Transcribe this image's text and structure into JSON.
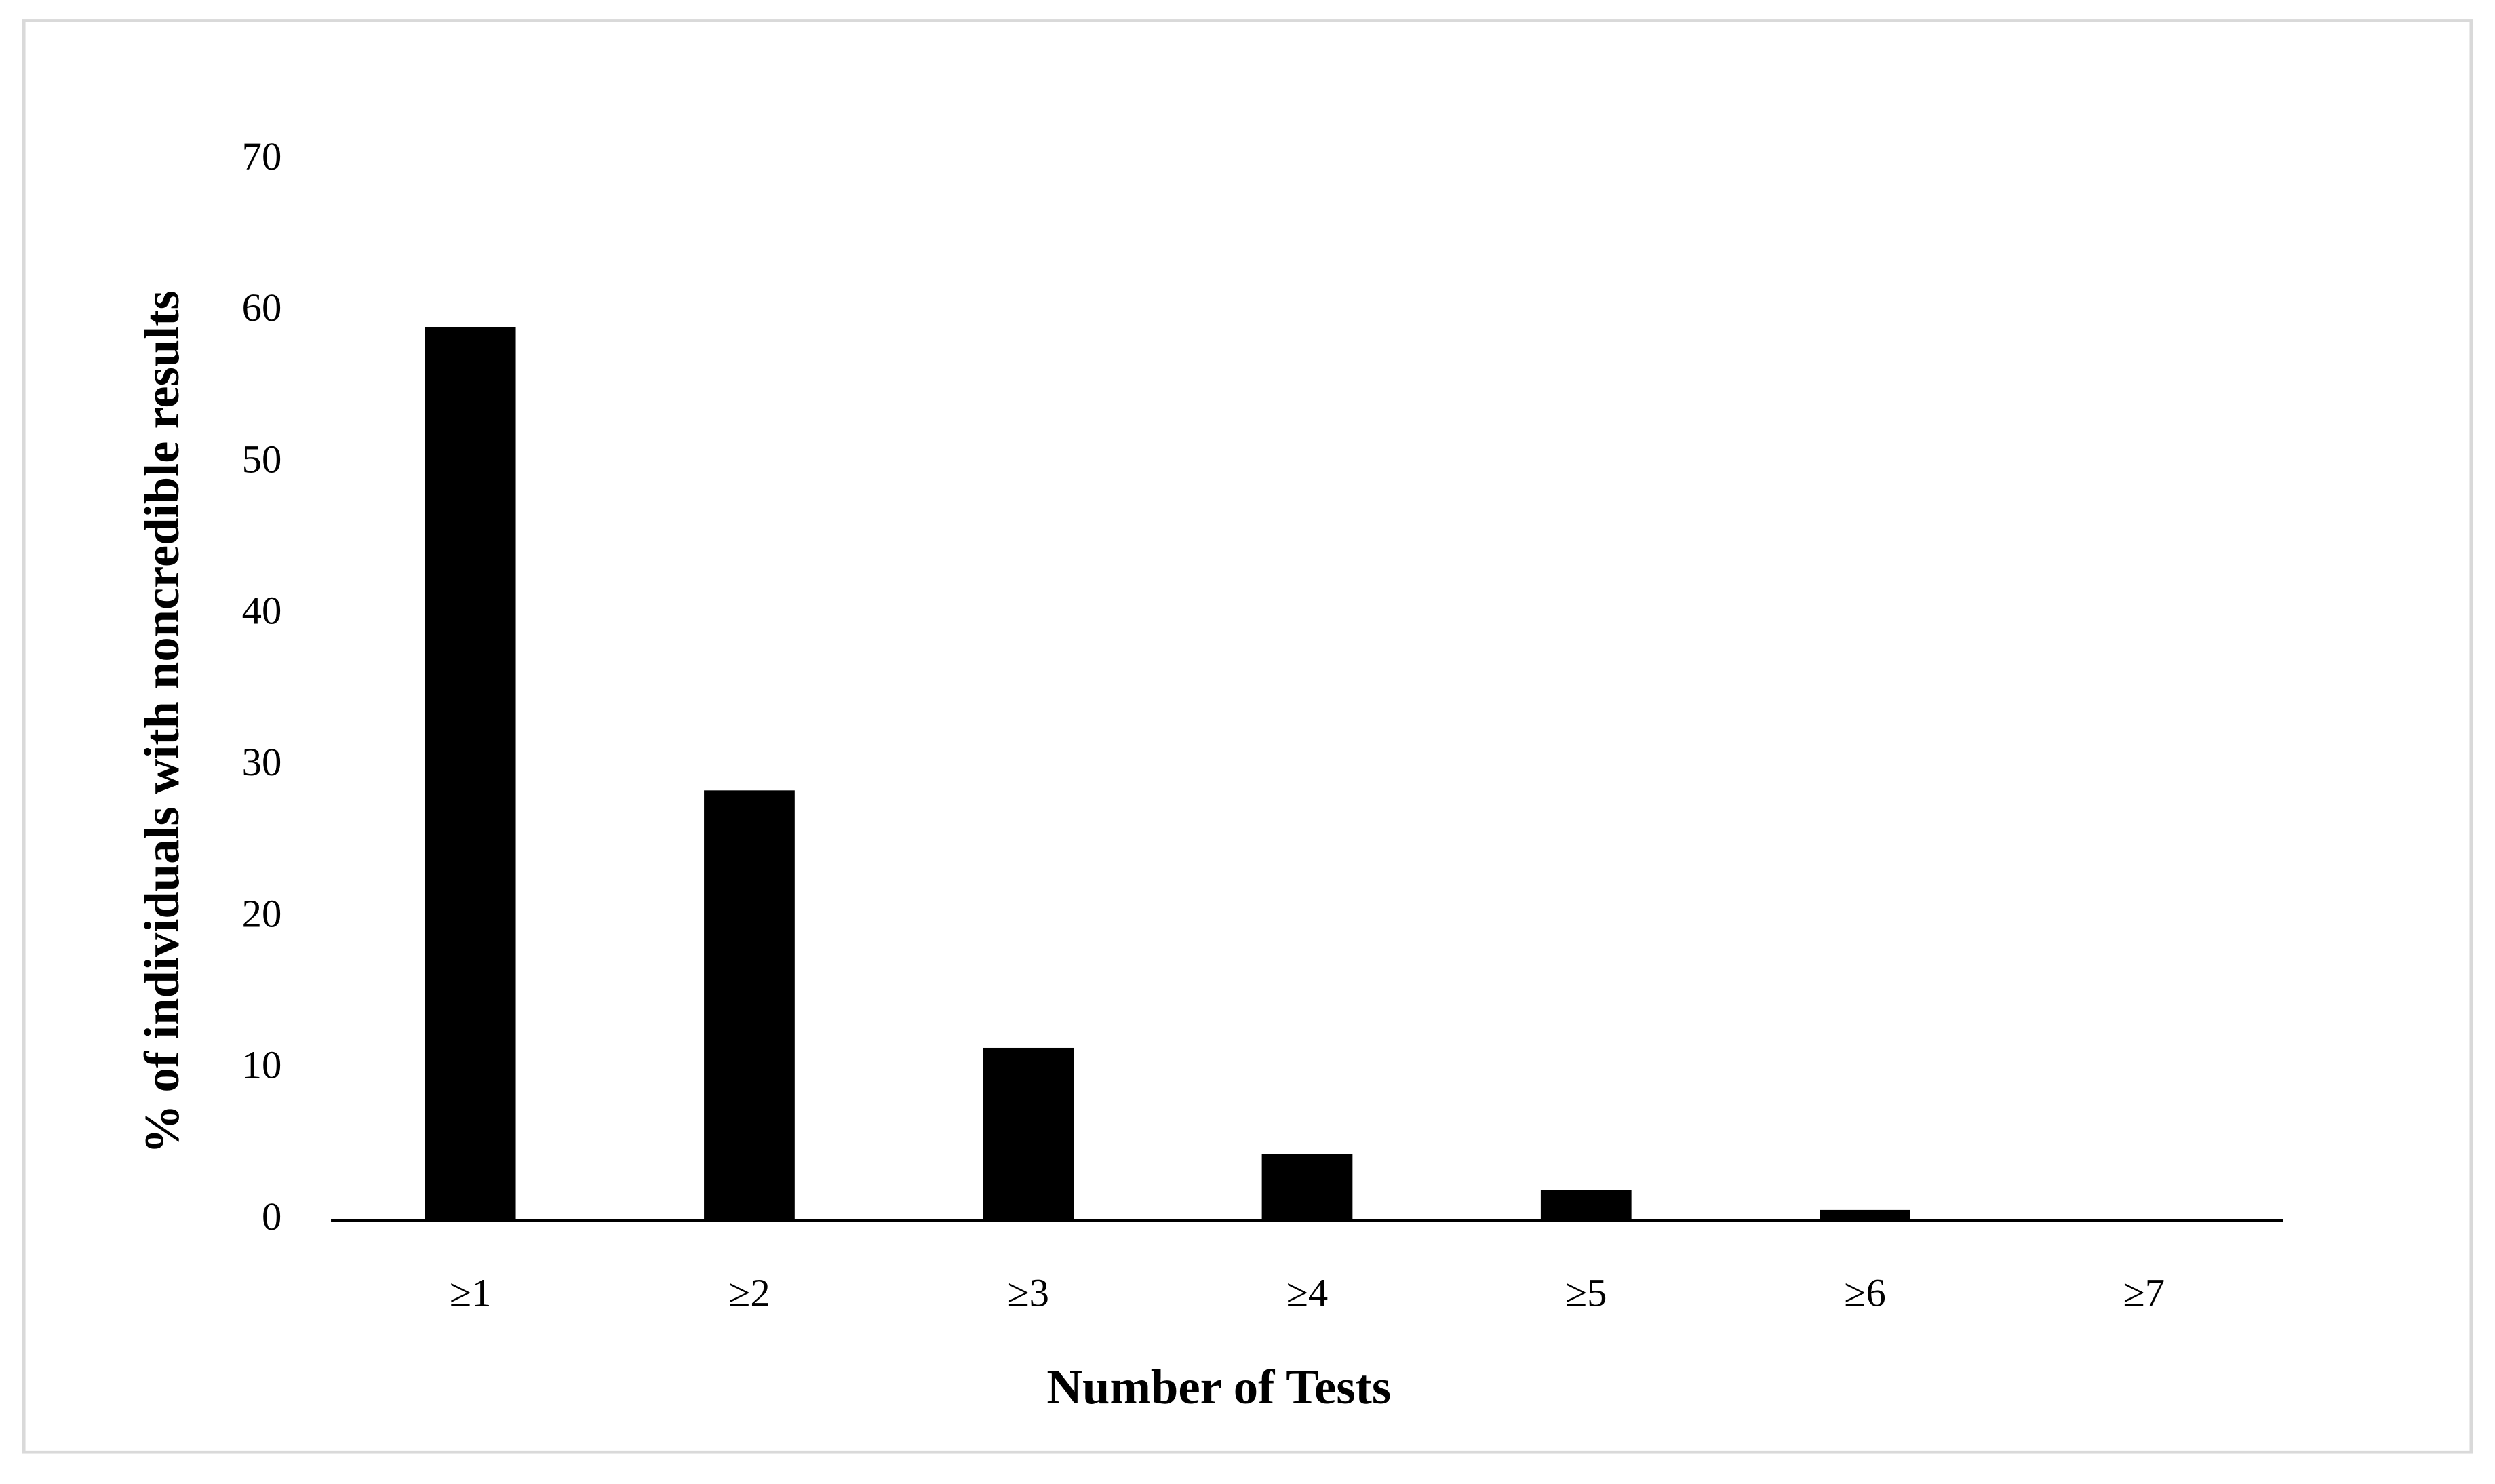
{
  "chart_data": {
    "type": "bar",
    "x_label": "Number of Tests",
    "y_label": "% of individuals with noncredible results",
    "categories": [
      "≥1",
      "≥2",
      "≥3",
      "≥4",
      "≥5",
      "≥6",
      "≥7"
    ],
    "values": [
      59,
      28.4,
      11.4,
      4.4,
      2.0,
      0.7,
      0
    ],
    "color": "#000000",
    "ylim": [
      0,
      70
    ],
    "yticks": [
      0,
      10,
      20,
      30,
      40,
      50,
      60,
      70
    ],
    "grid": false
  }
}
